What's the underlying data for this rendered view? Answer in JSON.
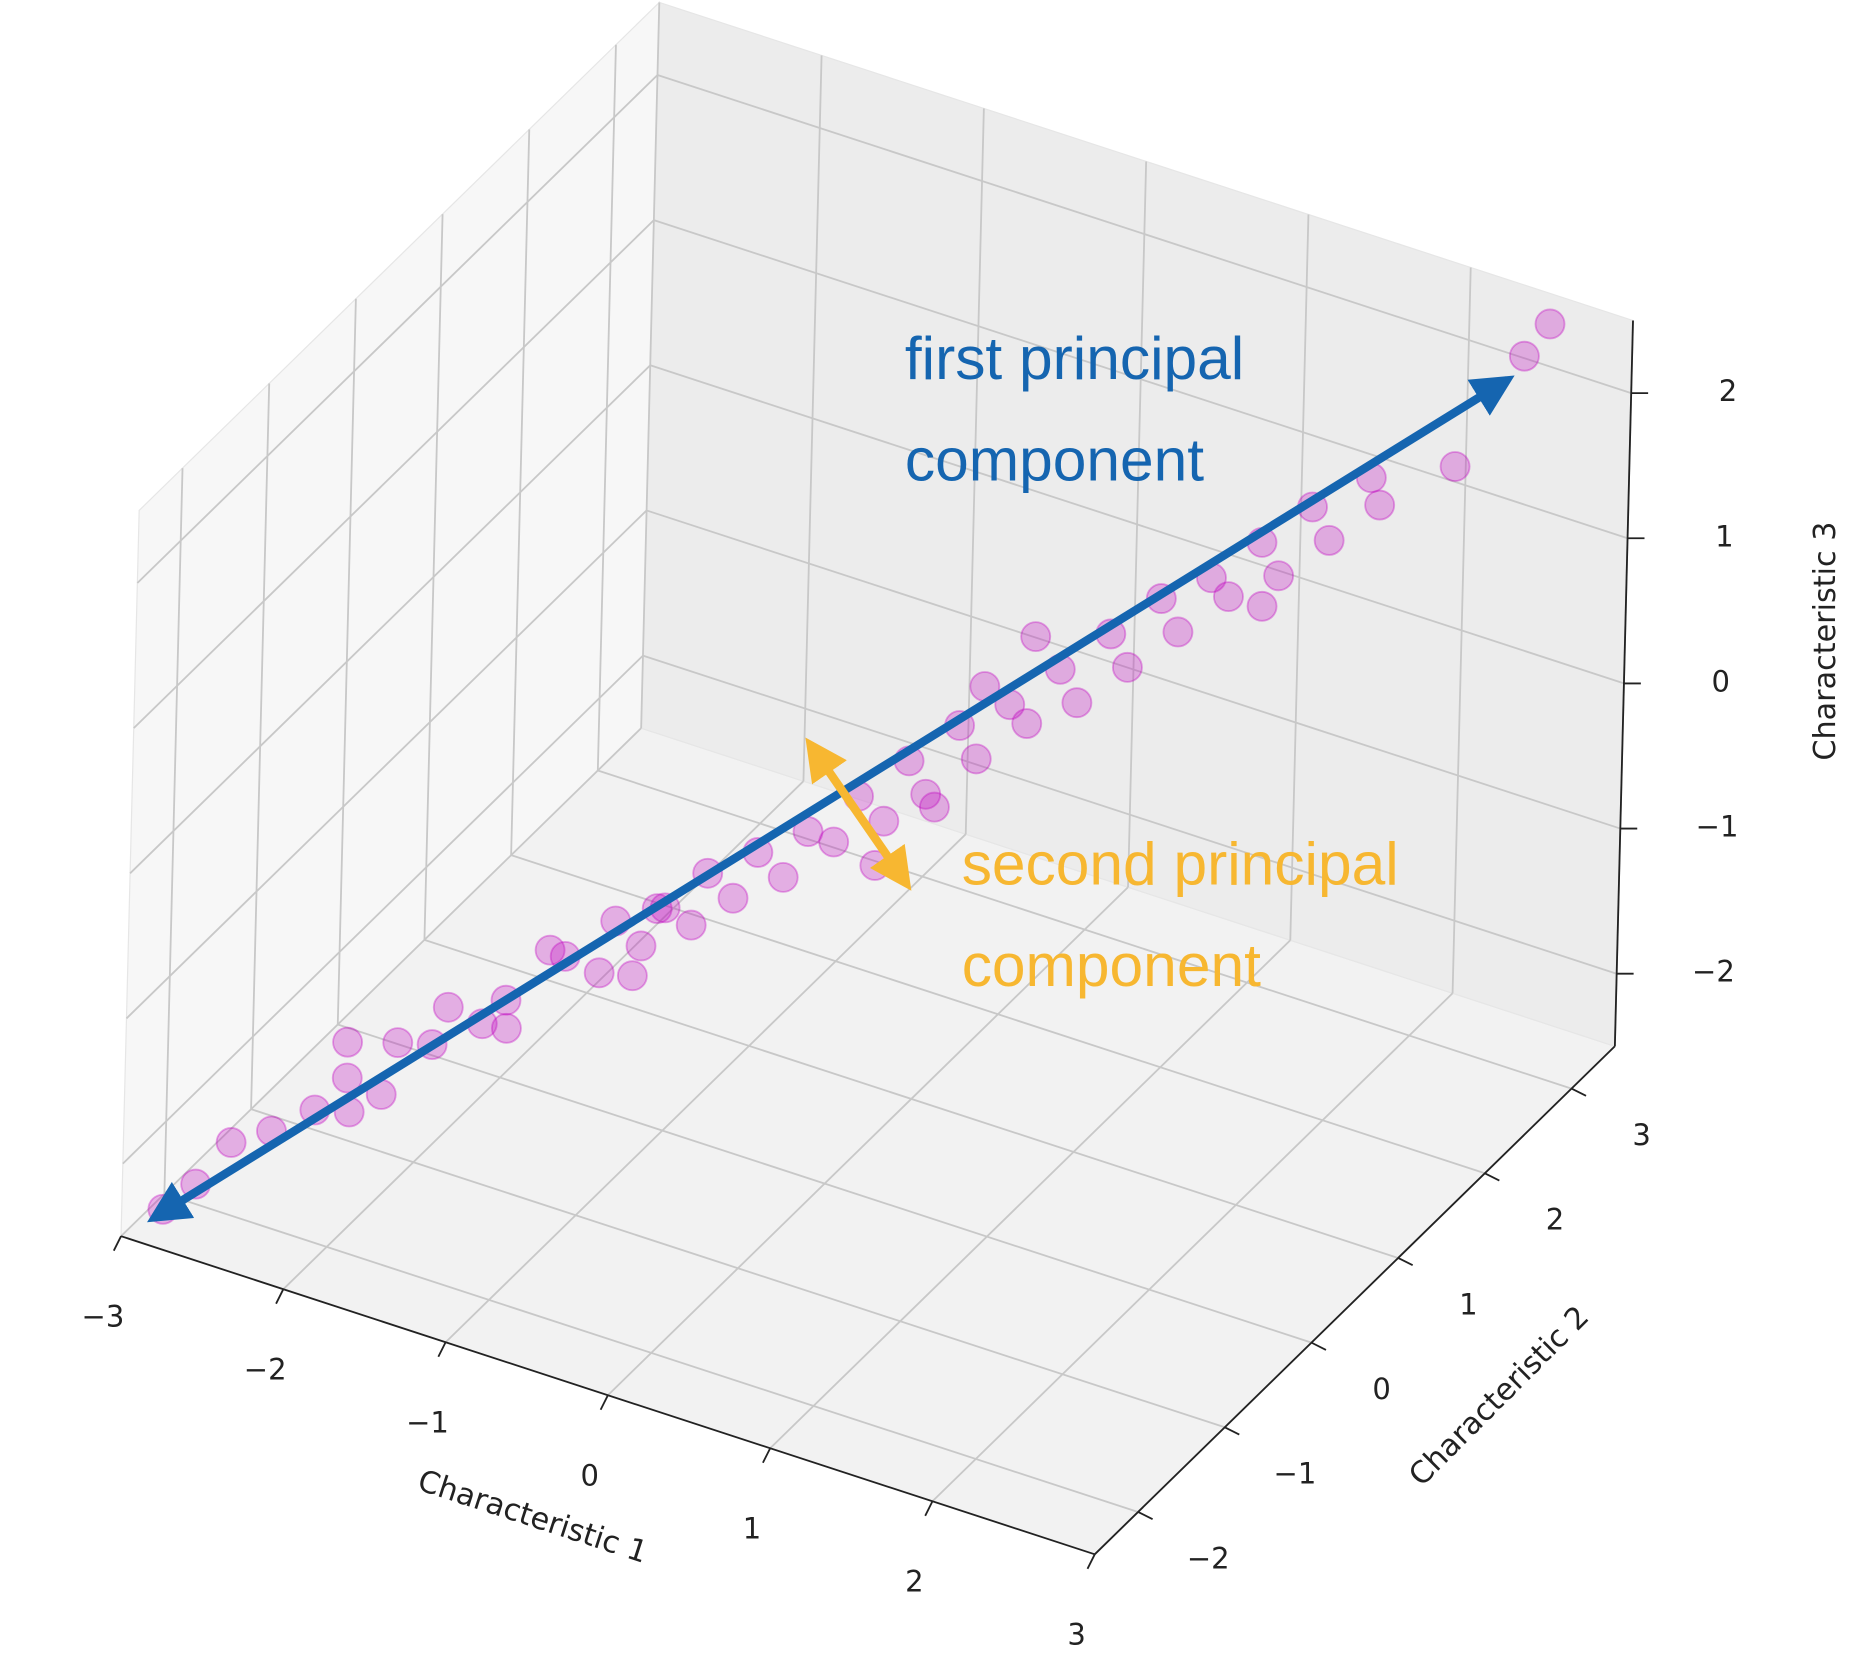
{
  "chart_data": {
    "type": "scatter3d",
    "x": [
      -2.8,
      -2.6,
      -2.5,
      -2.3,
      -2.2,
      -2.0,
      -1.9,
      -1.8,
      -1.7,
      -1.6,
      -1.5,
      -1.4,
      -1.3,
      -1.2,
      -1.1,
      -1.0,
      -0.9,
      -0.8,
      -0.7,
      -0.6,
      -0.5,
      -0.4,
      -0.3,
      -0.2,
      -0.1,
      0.0,
      0.1,
      0.2,
      0.3,
      0.4,
      0.5,
      0.6,
      0.7,
      0.8,
      0.9,
      1.0,
      1.1,
      1.2,
      1.3,
      1.4,
      1.5,
      1.6,
      1.7,
      1.8,
      1.9,
      2.0,
      2.1,
      2.2,
      2.4,
      2.6,
      2.7,
      -1.0,
      -0.5,
      0.2,
      0.8,
      1.5,
      -1.8,
      0.0,
      1.0,
      -2.4
    ],
    "y": [
      -2.4,
      -2.0,
      -2.6,
      -1.6,
      -2.3,
      -1.4,
      -2.0,
      -1.2,
      -1.8,
      -1.0,
      -1.6,
      -1.1,
      -0.8,
      -1.5,
      -0.6,
      -1.2,
      -0.5,
      -1.0,
      -0.3,
      -0.9,
      -0.2,
      -0.7,
      0.0,
      -0.5,
      0.2,
      -0.3,
      0.4,
      -0.1,
      0.5,
      0.1,
      0.7,
      0.3,
      0.9,
      0.5,
      1.1,
      0.7,
      1.3,
      0.9,
      1.5,
      1.1,
      1.7,
      1.3,
      1.9,
      1.5,
      2.1,
      1.7,
      2.3,
      2.0,
      2.6,
      3.0,
      3.1,
      -0.4,
      -1.0,
      0.8,
      0.2,
      2.1,
      -2.2,
      0.5,
      0.4,
      -1.0
    ],
    "z": [
      -2.3,
      -2.0,
      -1.9,
      -1.9,
      -1.6,
      -1.8,
      -1.3,
      -1.5,
      -1.1,
      -1.4,
      -0.9,
      -1.3,
      -0.9,
      -0.8,
      -1.1,
      -0.6,
      -0.9,
      -0.4,
      -0.8,
      -0.3,
      -0.6,
      -0.1,
      -0.5,
      0.0,
      -0.3,
      0.1,
      -0.2,
      0.3,
      0.0,
      0.5,
      0.2,
      0.7,
      0.4,
      0.8,
      0.5,
      1.0,
      0.7,
      1.2,
      0.9,
      1.4,
      1.1,
      1.5,
      1.2,
      1.7,
      1.4,
      1.9,
      1.6,
      2.0,
      1.8,
      2.4,
      2.6,
      -1.2,
      -0.2,
      -0.3,
      1.1,
      0.8,
      -0.9,
      -0.6,
      1.4,
      -2.3
    ],
    "color": "#bf00bf",
    "xlabel": "Characteristic 1",
    "ylabel": "Characteristic 2",
    "zlabel": "Characteristic 3",
    "xlim": [
      -3,
      3
    ],
    "ylim": [
      -2.5,
      3.5
    ],
    "zlim": [
      -2.5,
      2.5
    ],
    "xticks": [
      {
        "value": -3,
        "label": "−3"
      },
      {
        "value": -2,
        "label": "−2"
      },
      {
        "value": -1,
        "label": "−1"
      },
      0,
      1,
      2,
      3
    ],
    "yticks": [
      {
        "value": -2,
        "label": "−2"
      },
      {
        "value": -1,
        "label": "−1"
      },
      0,
      1,
      2,
      3
    ],
    "zticks": [
      {
        "value": -2,
        "label": "−2"
      },
      {
        "value": -1,
        "label": "−1"
      },
      0,
      1,
      2
    ],
    "grid": true,
    "annotations": [
      {
        "lines": [
          "first principal",
          "component"
        ],
        "color": "#1565b0",
        "start": [
          -2.8,
          -2.5,
          -2.3
        ],
        "end": [
          2.5,
          3.0,
          2.2
        ]
      },
      {
        "lines": [
          "second principal",
          "component"
        ],
        "color": "#f7b731",
        "start": [
          0.0,
          -0.3,
          0.7
        ],
        "end": [
          0.3,
          0.3,
          -0.5
        ]
      }
    ]
  }
}
